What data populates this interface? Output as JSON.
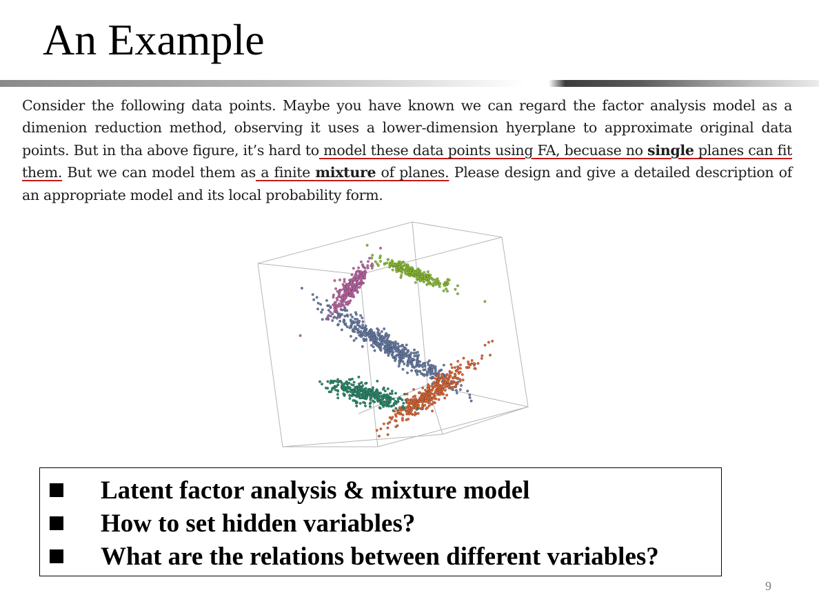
{
  "slide": {
    "title": "An Example",
    "page_number": "9"
  },
  "paragraph": {
    "p1": "Consider the following data points. Maybe you have known we can regard the factor analysis model as a dimenion reduction method, observing it uses a lower-dimension hyerplane to approximate original data points. But in tha above figure, it’s hard to",
    "u1a": " model these data points using FA, becuase no ",
    "u1b": "single",
    "u1c": " planes can fit them.",
    "p2": " But we can model them as",
    "u2a": " a finite ",
    "u2b": "mixture",
    "u2c": " of planes.",
    "p3": " Please design and give a detailed description of an appropriate model and its local probability form."
  },
  "figure": {
    "clusters": [
      {
        "color": "#8fbf3a",
        "count": 260
      },
      {
        "color": "#c06aa8",
        "count": 280
      },
      {
        "color": "#6b7fa8",
        "count": 520
      },
      {
        "color": "#2e8c6e",
        "count": 320
      },
      {
        "color": "#dc6a3a",
        "count": 360
      }
    ]
  },
  "box": {
    "items": [
      {
        "text": "Latent factor analysis & mixture model"
      },
      {
        "text": "How to set hidden variables?"
      },
      {
        "text": "What are the relations between different variables?"
      }
    ]
  }
}
